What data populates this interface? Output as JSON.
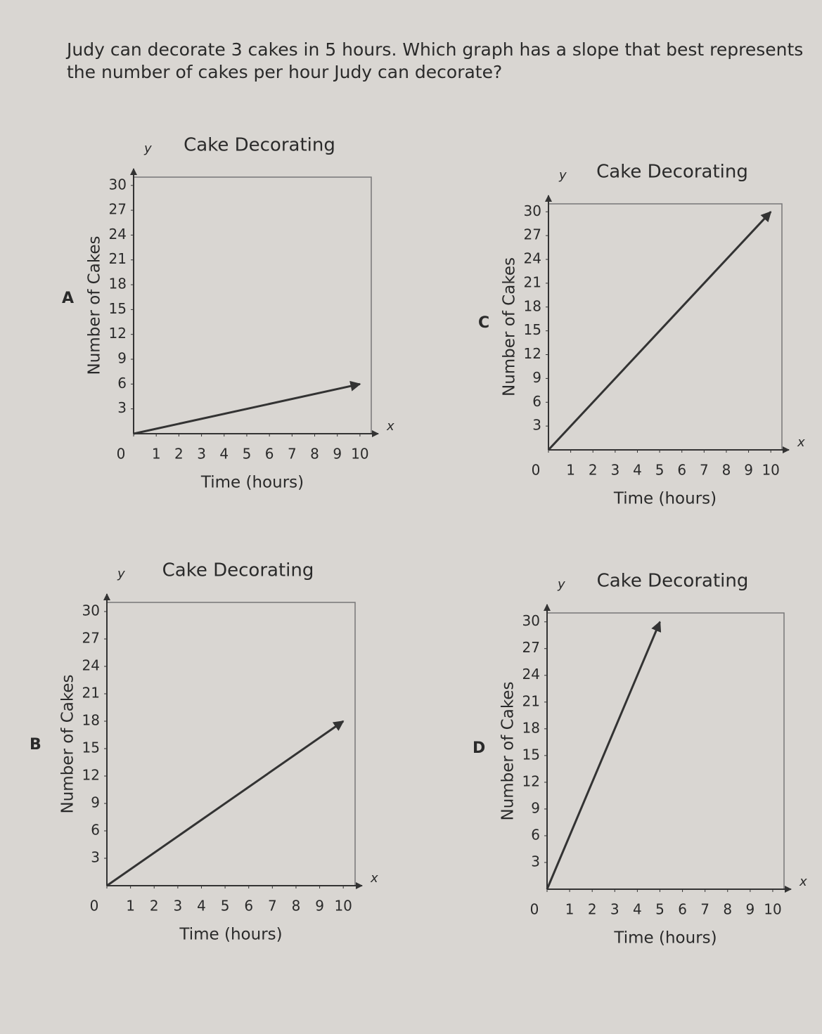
{
  "question": "Judy can decorate 3 cakes in 5 hours. Which graph has a slope that best represents the number of cakes per hour Judy can decorate?",
  "chart_data": [
    {
      "type": "line",
      "label": "A",
      "title": "Cake Decorating",
      "xlabel": "Time (hours)",
      "ylabel": "Number of Cakes",
      "x_axis_name": "x",
      "y_axis_name": "y",
      "x": [
        0,
        10
      ],
      "values": [
        0,
        6
      ],
      "color": "#333333",
      "xlim": [
        0,
        10.5
      ],
      "ylim": [
        0,
        31
      ],
      "xticks": [
        0,
        1,
        2,
        3,
        4,
        5,
        6,
        7,
        8,
        9,
        10
      ],
      "yticks": [
        3,
        6,
        9,
        12,
        15,
        18,
        21,
        24,
        27,
        30
      ]
    },
    {
      "type": "line",
      "label": "C",
      "title": "Cake Decorating",
      "xlabel": "Time (hours)",
      "ylabel": "Number of Cakes",
      "x_axis_name": "x",
      "y_axis_name": "y",
      "x": [
        0,
        10
      ],
      "values": [
        0,
        30
      ],
      "color": "#333333",
      "xlim": [
        0,
        10.5
      ],
      "ylim": [
        0,
        31
      ],
      "xticks": [
        0,
        1,
        2,
        3,
        4,
        5,
        6,
        7,
        8,
        9,
        10
      ],
      "yticks": [
        3,
        6,
        9,
        12,
        15,
        18,
        21,
        24,
        27,
        30
      ]
    },
    {
      "type": "line",
      "label": "B",
      "title": "Cake Decorating",
      "xlabel": "Time (hours)",
      "ylabel": "Number of Cakes",
      "x_axis_name": "x",
      "y_axis_name": "y",
      "x": [
        0,
        10
      ],
      "values": [
        0,
        18
      ],
      "color": "#333333",
      "xlim": [
        0,
        10.5
      ],
      "ylim": [
        0,
        31
      ],
      "xticks": [
        0,
        1,
        2,
        3,
        4,
        5,
        6,
        7,
        8,
        9,
        10
      ],
      "yticks": [
        3,
        6,
        9,
        12,
        15,
        18,
        21,
        24,
        27,
        30
      ]
    },
    {
      "type": "line",
      "label": "D",
      "title": "Cake Decorating",
      "xlabel": "Time (hours)",
      "ylabel": "Number of Cakes",
      "x_axis_name": "x",
      "y_axis_name": "y",
      "x": [
        0,
        5
      ],
      "values": [
        0,
        30
      ],
      "color": "#333333",
      "xlim": [
        0,
        10.5
      ],
      "ylim": [
        0,
        31
      ],
      "xticks": [
        0,
        1,
        2,
        3,
        4,
        5,
        6,
        7,
        8,
        9,
        10
      ],
      "yticks": [
        3,
        6,
        9,
        12,
        15,
        18,
        21,
        24,
        27,
        30
      ]
    }
  ]
}
